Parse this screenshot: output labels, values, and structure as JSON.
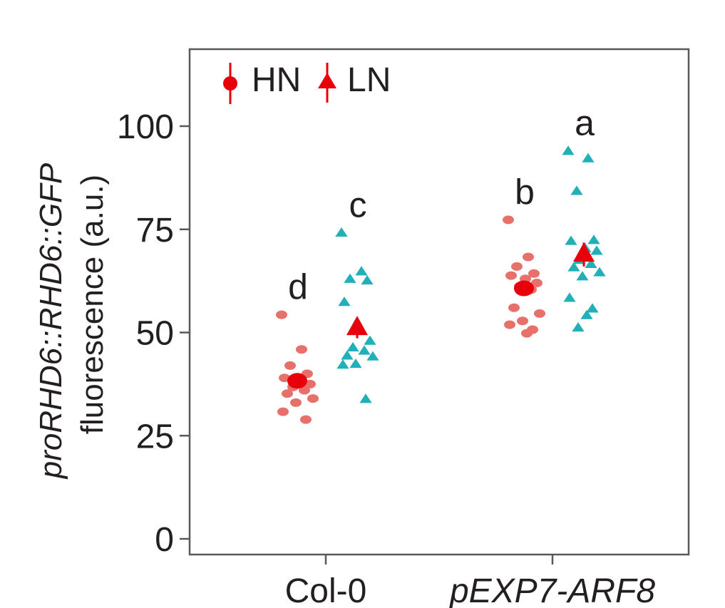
{
  "chart_data": {
    "type": "scatter",
    "ylabel_line1": "proRHD6::RHD6::GFP",
    "ylabel_line2": "fluorescence (a.u.)",
    "categories": [
      "Col-0",
      "pEXP7-ARF8"
    ],
    "ylim": [
      -3,
      118
    ],
    "yticks": [
      0,
      25,
      50,
      75,
      100
    ],
    "grid": false,
    "legend_position": "top-left",
    "series": [
      {
        "name": "HN",
        "marker": "circle",
        "point_color": "#e8706a",
        "mean_color": "#e8000b",
        "groups": [
          {
            "category": "Col-0",
            "letter": "d",
            "mean": 38.3,
            "sem": 1.5,
            "points": [
              54.3,
              45.9,
              42.0,
              40.0,
              39.0,
              38.2,
              37.5,
              36.8,
              36.0,
              35.2,
              34.0,
              33.0,
              30.8,
              28.9
            ]
          },
          {
            "category": "pEXP7-ARF8",
            "letter": "b",
            "mean": 60.7,
            "sem": 1.7,
            "points": [
              77.3,
              68.3,
              66.0,
              64.3,
              63.8,
              63.0,
              62.0,
              61.2,
              60.4,
              56.0,
              54.6,
              52.8,
              51.9,
              50.7,
              49.8
            ]
          }
        ]
      },
      {
        "name": "LN",
        "marker": "triangle",
        "point_color": "#21b0b8",
        "mean_color": "#e8000b",
        "groups": [
          {
            "category": "Col-0",
            "letter": "c",
            "mean": 51.1,
            "sem": 2.5,
            "points": [
              74.2,
              64.8,
              63.0,
              62.6,
              57.4,
              51.1,
              48.0,
              46.4,
              45.6,
              44.4,
              44.2,
              42.4,
              42.2,
              33.9
            ]
          },
          {
            "category": "pEXP7-ARF8",
            "letter": "a",
            "mean": 68.9,
            "sem": 2.9,
            "points": [
              94.0,
              92.2,
              84.3,
              72.4,
              72.2,
              70.4,
              69.8,
              67.6,
              66.6,
              65.8,
              64.6,
              63.6,
              58.4,
              55.8,
              54.2,
              51.2
            ]
          }
        ]
      }
    ]
  }
}
